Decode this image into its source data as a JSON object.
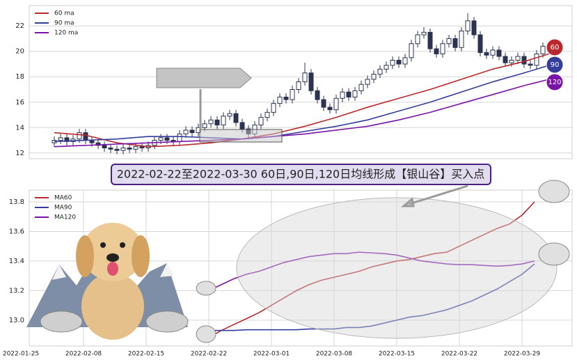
{
  "chart_data": [
    {
      "type": "candlestick",
      "legend": "upper left",
      "grid": true,
      "ylim": [
        11.55,
        23.6
      ],
      "yticks": [
        12,
        14,
        16,
        18,
        20,
        22
      ],
      "open": [
        12.8,
        13.0,
        13.2,
        12.9,
        13.1,
        13.6,
        13.0,
        12.8,
        12.6,
        12.4,
        12.3,
        12.2,
        12.4,
        12.3,
        12.5,
        12.4,
        12.6,
        13.0,
        13.2,
        13.0,
        12.9,
        13.5,
        13.8,
        13.6,
        14.0,
        14.3,
        14.6,
        14.2,
        14.9,
        15.1,
        14.4,
        13.9,
        13.5,
        14.2,
        14.8,
        15.2,
        15.9,
        16.4,
        16.2,
        17.0,
        17.6,
        18.3,
        16.9,
        16.2,
        15.6,
        15.4,
        16.3,
        16.8,
        16.4,
        16.9,
        17.4,
        17.8,
        18.2,
        18.6,
        18.9,
        19.3,
        19.0,
        19.5,
        20.6,
        21.3,
        21.5,
        20.2,
        19.8,
        20.6,
        21.0,
        20.3,
        21.6,
        22.4,
        21.3,
        19.9,
        19.7,
        20.1,
        19.6,
        19.1,
        19.3,
        19.6,
        19.0,
        18.9,
        19.8,
        20.4
      ],
      "high": [
        13.3,
        13.5,
        13.5,
        13.4,
        13.9,
        13.9,
        13.3,
        13.1,
        12.9,
        12.7,
        12.6,
        12.7,
        12.7,
        12.8,
        12.8,
        12.9,
        13.3,
        13.5,
        13.5,
        13.3,
        13.8,
        14.1,
        14.1,
        14.3,
        14.6,
        14.9,
        14.9,
        15.2,
        15.4,
        15.4,
        14.7,
        14.2,
        14.5,
        15.1,
        15.5,
        16.2,
        16.7,
        16.7,
        17.3,
        17.9,
        19.1,
        18.6,
        17.2,
        16.5,
        15.9,
        16.6,
        17.1,
        17.1,
        17.2,
        17.7,
        18.1,
        18.5,
        18.9,
        19.2,
        19.6,
        19.6,
        19.8,
        20.9,
        21.6,
        21.9,
        21.8,
        20.5,
        20.9,
        21.3,
        21.3,
        21.9,
        23.0,
        22.7,
        21.6,
        20.2,
        20.4,
        20.4,
        19.9,
        19.6,
        19.9,
        19.9,
        19.3,
        20.1,
        20.7,
        20.8
      ],
      "low": [
        12.5,
        12.7,
        12.6,
        12.6,
        12.8,
        12.7,
        12.5,
        12.3,
        12.1,
        12.0,
        11.9,
        11.9,
        12.0,
        12.0,
        12.1,
        12.1,
        12.3,
        12.7,
        12.7,
        12.6,
        12.6,
        13.2,
        13.3,
        13.3,
        13.7,
        14.0,
        13.9,
        13.9,
        14.6,
        14.1,
        13.6,
        13.2,
        13.2,
        13.9,
        14.5,
        14.9,
        15.6,
        15.9,
        15.9,
        16.7,
        17.3,
        16.6,
        15.9,
        15.3,
        15.1,
        15.1,
        16.0,
        16.1,
        16.1,
        16.6,
        17.1,
        17.5,
        17.9,
        18.3,
        18.6,
        18.7,
        18.7,
        19.2,
        20.3,
        21.0,
        19.9,
        19.5,
        19.5,
        20.3,
        20.0,
        20.0,
        21.3,
        21.0,
        19.6,
        19.4,
        19.4,
        19.3,
        18.8,
        18.8,
        19.0,
        18.7,
        18.6,
        18.6,
        19.5,
        20.1
      ],
      "close": [
        13.0,
        13.2,
        12.9,
        13.1,
        13.6,
        13.0,
        12.8,
        12.6,
        12.4,
        12.3,
        12.2,
        12.4,
        12.3,
        12.5,
        12.4,
        12.6,
        13.0,
        13.2,
        13.0,
        12.9,
        13.5,
        13.8,
        13.6,
        14.0,
        14.3,
        14.6,
        14.2,
        14.9,
        15.1,
        14.4,
        13.9,
        13.5,
        14.2,
        14.8,
        15.2,
        15.9,
        16.4,
        16.2,
        17.0,
        17.6,
        18.3,
        16.9,
        16.2,
        15.6,
        15.4,
        16.3,
        16.8,
        16.4,
        16.9,
        17.4,
        17.8,
        18.2,
        18.6,
        18.9,
        19.3,
        19.0,
        19.5,
        20.6,
        21.3,
        21.5,
        20.2,
        19.8,
        20.6,
        21.0,
        20.3,
        21.6,
        22.4,
        21.3,
        19.9,
        19.7,
        20.1,
        19.6,
        19.1,
        19.3,
        19.6,
        19.0,
        18.9,
        19.8,
        20.4,
        20.5
      ],
      "up_color": "#ffffff",
      "down_color": "#2b3350",
      "edge_color": "#2b3350",
      "series": [
        {
          "name": "60 ma",
          "color": "#b8282c",
          "x": [
            0,
            5,
            10,
            15,
            20,
            25,
            30,
            35,
            40,
            45,
            50,
            55,
            60,
            65,
            70,
            75,
            79
          ],
          "values": [
            13.6,
            13.4,
            12.8,
            12.5,
            12.6,
            12.8,
            13.1,
            13.5,
            14.1,
            14.8,
            15.6,
            16.3,
            17.0,
            17.8,
            18.6,
            19.2,
            19.8
          ]
        },
        {
          "name": "90 ma",
          "color": "#343c9c",
          "x": [
            0,
            5,
            10,
            15,
            20,
            25,
            30,
            35,
            40,
            45,
            50,
            55,
            60,
            65,
            70,
            75,
            79
          ],
          "values": [
            12.9,
            13.0,
            13.1,
            13.3,
            13.3,
            13.2,
            13.1,
            13.3,
            13.7,
            14.1,
            14.6,
            15.3,
            16.0,
            16.8,
            17.6,
            18.3,
            18.9
          ]
        },
        {
          "name": "120 ma",
          "color": "#7a12a8",
          "x": [
            0,
            5,
            10,
            15,
            20,
            25,
            30,
            35,
            40,
            45,
            50,
            55,
            60,
            65,
            70,
            75,
            79
          ],
          "values": [
            12.5,
            12.6,
            12.7,
            12.8,
            12.9,
            13.0,
            13.1,
            13.3,
            13.5,
            13.8,
            14.1,
            14.6,
            15.2,
            15.9,
            16.6,
            17.3,
            17.8
          ]
        }
      ],
      "badges": [
        "60",
        "90",
        "120"
      ],
      "annotation": "【银山谷】买入点"
    },
    {
      "type": "line",
      "title": "2022-02-22至2022-03-30 60日,90日,120日均线形成【银山谷】买入点",
      "legend": "upper left",
      "grid": true,
      "ylim": [
        12.825,
        13.88
      ],
      "yticks": [
        {
          "value": 13,
          "label": "13.0"
        },
        13.2,
        13.4,
        13.6,
        13.8
      ],
      "categories": [
        "2022-01-25",
        null,
        null,
        null,
        null,
        "2022-02-08",
        null,
        null,
        null,
        null,
        "2022-02-15",
        null,
        null,
        null,
        null,
        "2022-02-22",
        null,
        null,
        null,
        null,
        "2022-03-01",
        null,
        null,
        null,
        null,
        "2022-03-08",
        null,
        null,
        null,
        null,
        "2022-03-15",
        null,
        null,
        null,
        null,
        "2022-03-22",
        null,
        null,
        null,
        null,
        "2022-03-29",
        null
      ],
      "series": [
        {
          "name": "MA60",
          "color": "#b8282c",
          "values": [
            null,
            null,
            null,
            null,
            null,
            null,
            null,
            null,
            null,
            null,
            null,
            null,
            null,
            null,
            null,
            12.88,
            12.93,
            12.97,
            13.01,
            13.05,
            13.1,
            13.15,
            13.2,
            13.24,
            13.27,
            13.29,
            13.31,
            13.33,
            13.36,
            13.38,
            13.4,
            13.41,
            13.43,
            13.45,
            13.46,
            13.5,
            13.54,
            13.58,
            13.62,
            13.65,
            13.71,
            13.8
          ]
        },
        {
          "name": "MA90",
          "color": "#343c9c",
          "values": [
            null,
            null,
            null,
            null,
            null,
            null,
            null,
            null,
            null,
            null,
            null,
            null,
            null,
            null,
            null,
            12.93,
            12.93,
            12.93,
            12.935,
            12.935,
            12.935,
            12.935,
            12.935,
            12.94,
            12.94,
            12.94,
            12.95,
            12.95,
            12.96,
            12.98,
            13.0,
            13.02,
            13.03,
            13.05,
            13.07,
            13.1,
            13.13,
            13.17,
            13.21,
            13.26,
            13.31,
            13.38
          ]
        },
        {
          "name": "MA120",
          "color": "#7a12a8",
          "values": [
            null,
            null,
            null,
            null,
            null,
            null,
            null,
            null,
            null,
            null,
            null,
            null,
            null,
            null,
            null,
            13.2,
            13.24,
            13.28,
            13.31,
            13.33,
            13.36,
            13.39,
            13.41,
            13.43,
            13.44,
            13.45,
            13.45,
            13.46,
            13.455,
            13.45,
            13.44,
            13.42,
            13.4,
            13.39,
            13.38,
            13.375,
            13.375,
            13.37,
            13.365,
            13.37,
            13.38,
            13.4
          ]
        }
      ]
    }
  ]
}
